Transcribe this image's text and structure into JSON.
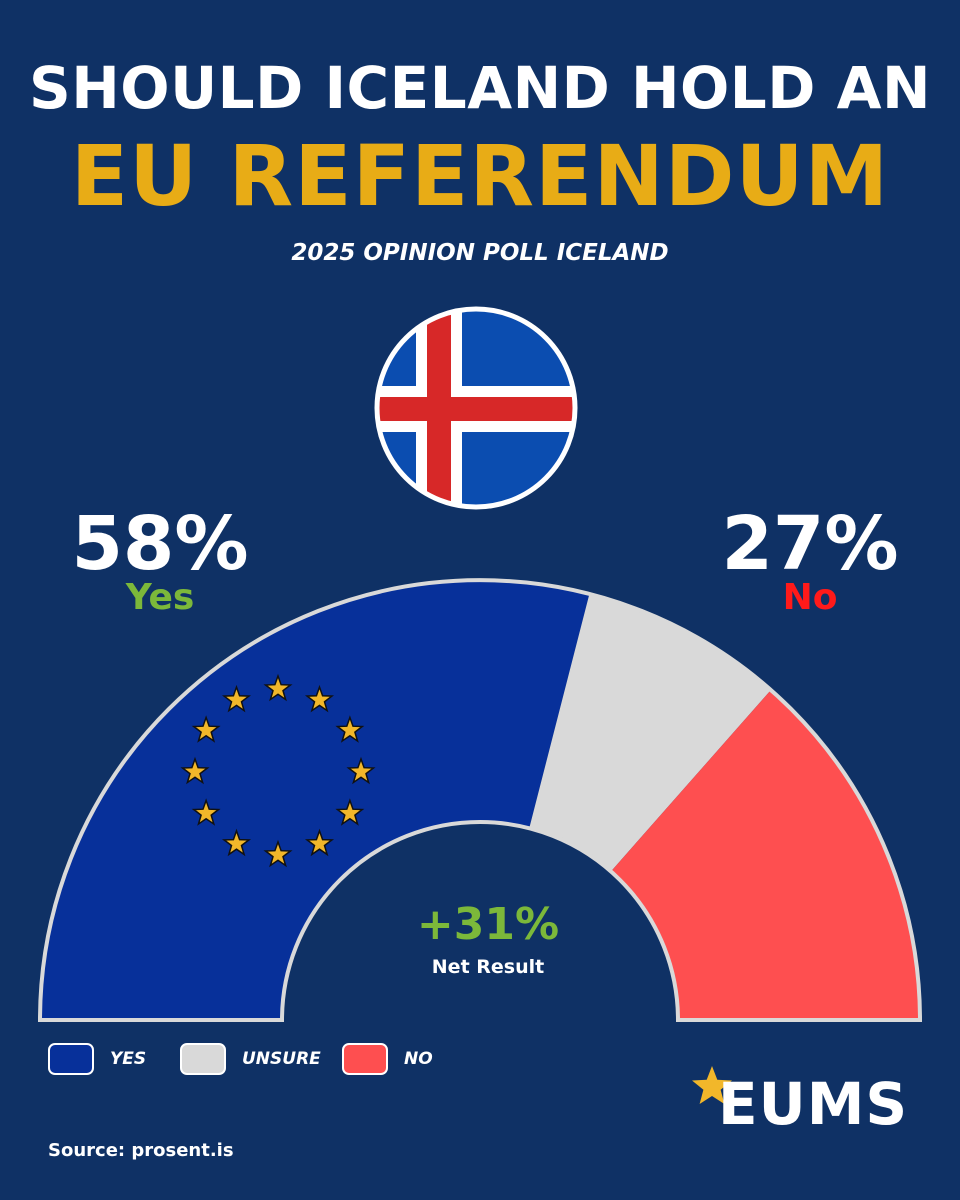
{
  "title_line1": "SHOULD ICELAND HOLD AN",
  "title_line2": "EU REFERENDUM",
  "subtitle": "2025 OPINION POLL ICELAND",
  "yes": {
    "percent": "58%",
    "label": "Yes"
  },
  "no": {
    "percent": "27%",
    "label": "No"
  },
  "net": {
    "value": "+31%",
    "label": "Net Result"
  },
  "legend": [
    {
      "label": "YES",
      "color": "#07309a"
    },
    {
      "label": "UNSURE",
      "color": "#d9d9d9"
    },
    {
      "label": "NO",
      "color": "#fe4f50"
    }
  ],
  "logo": {
    "text": "EUMS",
    "icon": "star-icon"
  },
  "source": "Source: prosent.is",
  "colors": {
    "background": "#0f3165",
    "title_accent": "#e8ac16",
    "yes_label": "#7cb83a",
    "no_label": "#ff1a1a",
    "star": "#f2b72a"
  },
  "chart_data": {
    "type": "pie",
    "style": "semicircle",
    "categories": [
      "YES",
      "UNSURE",
      "NO"
    ],
    "values": [
      58,
      15,
      27
    ],
    "colors": [
      "#07309a",
      "#d9d9d9",
      "#fe4f50"
    ],
    "title": "SHOULD ICELAND HOLD AN EU REFERENDUM",
    "subtitle": "2025 OPINION POLL ICELAND",
    "annotations": [
      "58% Yes",
      "27% No",
      "+31% Net Result"
    ],
    "legend": "bottom-left"
  }
}
